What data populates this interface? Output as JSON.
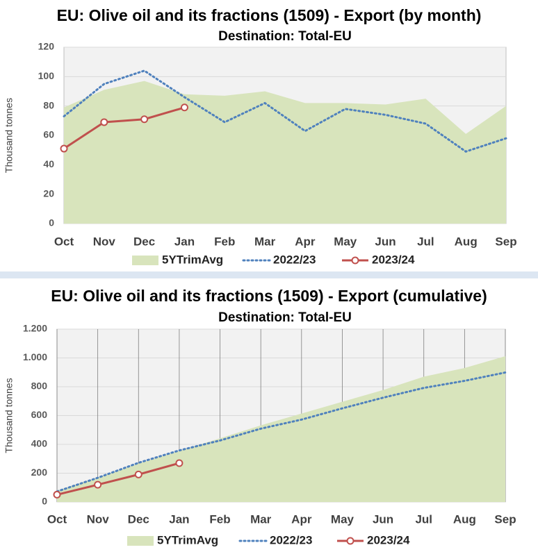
{
  "chart_data": [
    {
      "type": "line",
      "title": "EU: Olive oil and its fractions (1509) - Export  (by month)",
      "subtitle": "Destination: Total-EU",
      "y_label": "Thousand  tonnes",
      "categories": [
        "Oct",
        "Nov",
        "Dec",
        "Jan",
        "Feb",
        "Mar",
        "Apr",
        "May",
        "Jun",
        "Jul",
        "Aug",
        "Sep"
      ],
      "ylim": [
        0,
        120
      ],
      "yticks": [
        0,
        20,
        40,
        60,
        80,
        100,
        120
      ],
      "xgrid": false,
      "series": [
        {
          "name": "5YTrimAvg",
          "kind": "area",
          "color": "#d8e4bc",
          "values": [
            79,
            91,
            97,
            88,
            87,
            90,
            82,
            82,
            81,
            85,
            61,
            80
          ]
        },
        {
          "name": "2022/23",
          "kind": "dotted",
          "color": "#4f81bd",
          "values": [
            73,
            95,
            104,
            86,
            69,
            82,
            63,
            78,
            74,
            68,
            49,
            58
          ]
        },
        {
          "name": "2023/24",
          "kind": "marker",
          "color": "#c0504d",
          "values": [
            51,
            69,
            71,
            79,
            null,
            null,
            null,
            null,
            null,
            null,
            null,
            null
          ]
        }
      ]
    },
    {
      "type": "line",
      "title": "EU: Olive oil and its fractions (1509) - Export  (cumulative)",
      "subtitle": "Destination: Total-EU",
      "y_label": "Thousand  tonnes",
      "categories": [
        "Oct",
        "Nov",
        "Dec",
        "Jan",
        "Feb",
        "Mar",
        "Apr",
        "May",
        "Jun",
        "Jul",
        "Aug",
        "Sep"
      ],
      "ylim": [
        0,
        1200
      ],
      "yticks": [
        0,
        200,
        400,
        600,
        800,
        {
          "value": 1000,
          "label": "1.000"
        },
        {
          "value": 1200,
          "label": "1.200"
        }
      ],
      "xgrid": true,
      "series": [
        {
          "name": "5YTrimAvg",
          "kind": "area",
          "color": "#d8e4bc",
          "values": [
            79,
            170,
            267,
            355,
            442,
            532,
            614,
            696,
            777,
            870,
            930,
            1012
          ]
        },
        {
          "name": "2022/23",
          "kind": "dotted",
          "color": "#4f81bd",
          "values": [
            73,
            168,
            272,
            358,
            427,
            509,
            572,
            650,
            724,
            792,
            841,
            899
          ]
        },
        {
          "name": "2023/24",
          "kind": "marker",
          "color": "#c0504d",
          "values": [
            51,
            120,
            191,
            270,
            null,
            null,
            null,
            null,
            null,
            null,
            null,
            null
          ]
        }
      ]
    }
  ]
}
